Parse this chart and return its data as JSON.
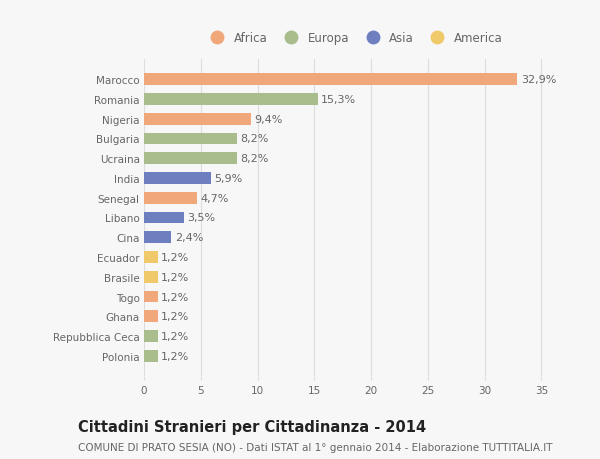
{
  "countries": [
    "Marocco",
    "Romania",
    "Nigeria",
    "Bulgaria",
    "Ucraina",
    "India",
    "Senegal",
    "Libano",
    "Cina",
    "Ecuador",
    "Brasile",
    "Togo",
    "Ghana",
    "Repubblica Ceca",
    "Polonia"
  ],
  "values": [
    32.9,
    15.3,
    9.4,
    8.2,
    8.2,
    5.9,
    4.7,
    3.5,
    2.4,
    1.2,
    1.2,
    1.2,
    1.2,
    1.2,
    1.2
  ],
  "continents": [
    "Africa",
    "Europa",
    "Africa",
    "Europa",
    "Europa",
    "Asia",
    "Africa",
    "Asia",
    "Asia",
    "America",
    "America",
    "Africa",
    "Africa",
    "Europa",
    "Europa"
  ],
  "colors": {
    "Africa": "#F0A87A",
    "Europa": "#A8BC8C",
    "Asia": "#6E7FC0",
    "America": "#F0C96A"
  },
  "legend_order": [
    "Africa",
    "Europa",
    "Asia",
    "America"
  ],
  "title": "Cittadini Stranieri per Cittadinanza - 2014",
  "subtitle": "COMUNE DI PRATO SESIA (NO) - Dati ISTAT al 1° gennaio 2014 - Elaborazione TUTTITALIA.IT",
  "xlim": [
    0,
    37
  ],
  "xticks": [
    0,
    5,
    10,
    15,
    20,
    25,
    30,
    35
  ],
  "background_color": "#f7f7f7",
  "grid_color": "#dddddd",
  "bar_height": 0.6,
  "label_fontsize": 8,
  "title_fontsize": 10.5,
  "subtitle_fontsize": 7.5,
  "legend_fontsize": 8.5,
  "tick_fontsize": 7.5,
  "label_color": "#888888",
  "text_color": "#666666"
}
